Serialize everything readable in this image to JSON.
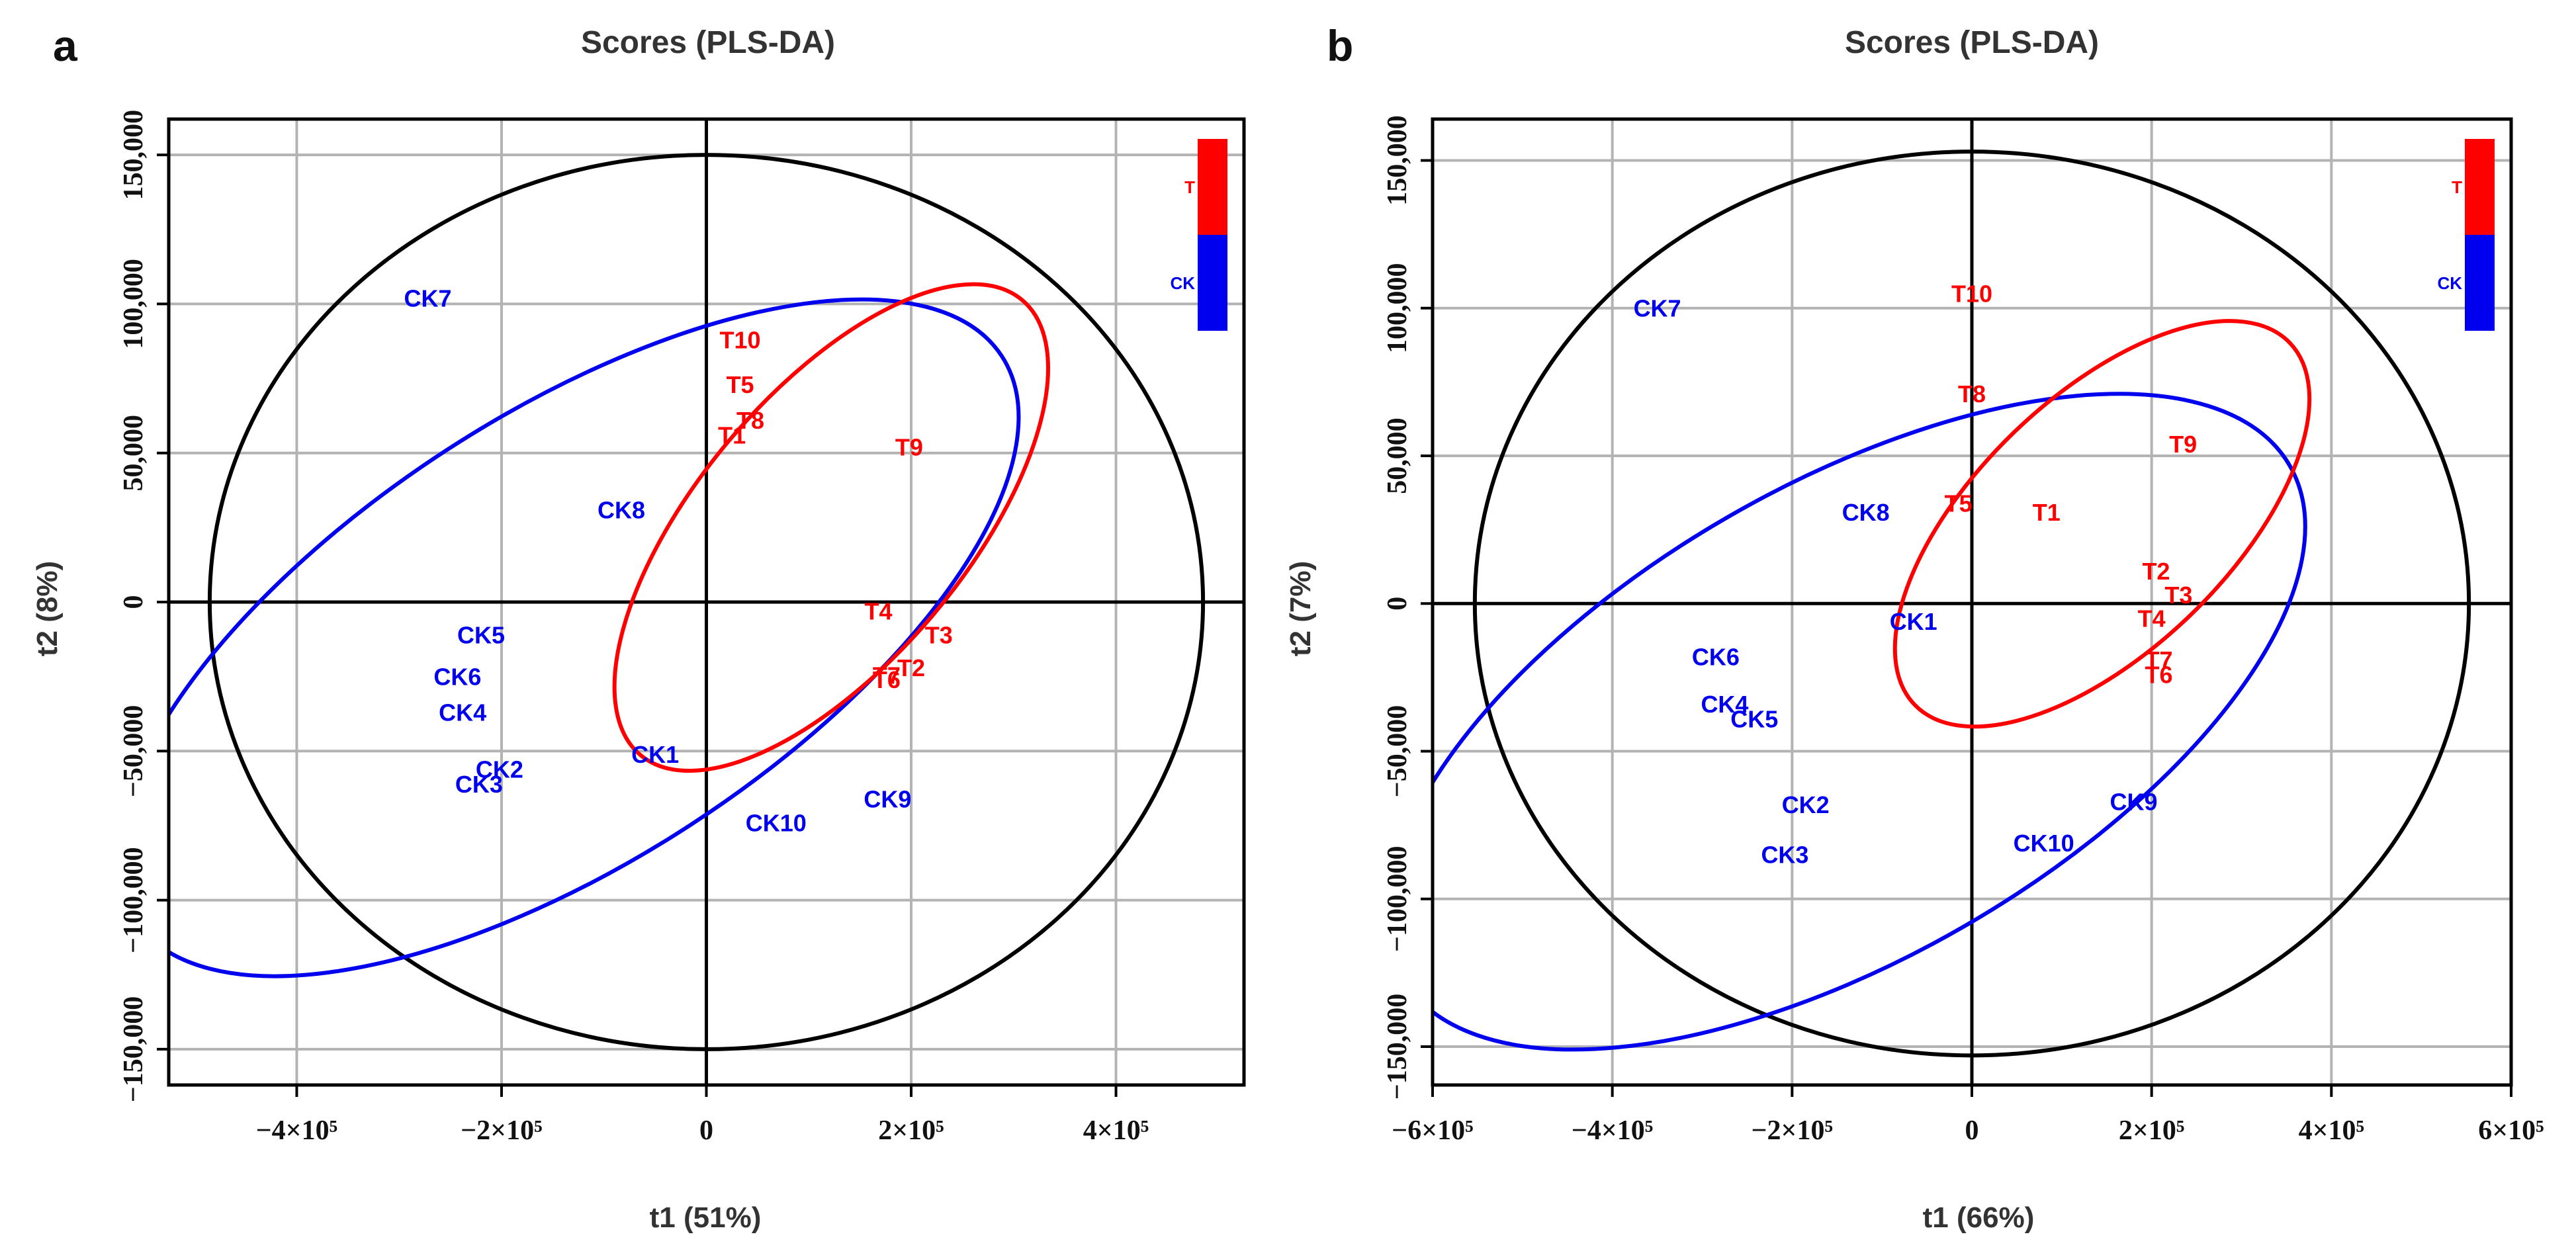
{
  "figure": {
    "panels": [
      "a",
      "b"
    ]
  },
  "colors": {
    "T": "#ff0000",
    "CK": "#0000ee",
    "frame": "#000000",
    "grid": "#b3b3b3",
    "hotelling": "#000000"
  },
  "chart_data": [
    {
      "panel": "a",
      "type": "scatter",
      "title": "Scores (PLS-DA)",
      "xlabel": "t1 (51%)",
      "ylabel": "t2 (8%)",
      "xlim": [
        -525000,
        525000
      ],
      "ylim": [
        -162000,
        162000
      ],
      "xticks": [
        {
          "v": -400000,
          "label": "−4×10⁵"
        },
        {
          "v": -200000,
          "label": "−2×10⁵"
        },
        {
          "v": 0,
          "label": "0"
        },
        {
          "v": 200000,
          "label": "2×10⁵"
        },
        {
          "v": 400000,
          "label": "4×10⁵"
        }
      ],
      "yticks": [
        {
          "v": -150000,
          "label": "−150,000"
        },
        {
          "v": -100000,
          "label": "−100,000"
        },
        {
          "v": -50000,
          "label": "−50,000"
        },
        {
          "v": 0,
          "label": "0"
        },
        {
          "v": 50000,
          "label": "50,000"
        },
        {
          "v": 100000,
          "label": "100,000"
        },
        {
          "v": 150000,
          "label": "150,000"
        }
      ],
      "legend": {
        "position": "top-right",
        "entries": [
          {
            "label": "T",
            "group": "T"
          },
          {
            "label": "CK",
            "group": "CK"
          }
        ]
      },
      "hotelling_ellipse": {
        "cx": 0,
        "cy": 0,
        "rx": 485000,
        "ry": 150000,
        "angle": 0
      },
      "group_ellipses": [
        {
          "group": "CK",
          "cx": -135000,
          "cy": -12000,
          "rx": 505000,
          "ry": 75000,
          "angle": 33
        },
        {
          "group": "T",
          "cx": 122000,
          "cy": 25000,
          "rx": 290000,
          "ry": 45000,
          "angle": 50
        }
      ],
      "series": [
        {
          "name": "T",
          "points": [
            {
              "label": "T10",
              "x": 33000,
              "y": 88000
            },
            {
              "label": "T5",
              "x": 33000,
              "y": 73000
            },
            {
              "label": "T8",
              "x": 43000,
              "y": 61000
            },
            {
              "label": "T1",
              "x": 25000,
              "y": 56000
            },
            {
              "label": "T9",
              "x": 198000,
              "y": 52000
            },
            {
              "label": "T4",
              "x": 168000,
              "y": -3000
            },
            {
              "label": "T3",
              "x": 227000,
              "y": -11000
            },
            {
              "label": "T2",
              "x": 200000,
              "y": -22000
            },
            {
              "label": "T6",
              "x": 176000,
              "y": -26000
            },
            {
              "label": "T7",
              "x": 176000,
              "y": -24500
            }
          ]
        },
        {
          "name": "CK",
          "points": [
            {
              "label": "CK7",
              "x": -272000,
              "y": 102000
            },
            {
              "label": "CK8",
              "x": -83000,
              "y": 31000
            },
            {
              "label": "CK5",
              "x": -220000,
              "y": -11000
            },
            {
              "label": "CK6",
              "x": -243000,
              "y": -25000
            },
            {
              "label": "CK4",
              "x": -238000,
              "y": -37000
            },
            {
              "label": "CK1",
              "x": -50000,
              "y": -51000
            },
            {
              "label": "CK2",
              "x": -202000,
              "y": -56000
            },
            {
              "label": "CK3",
              "x": -222000,
              "y": -61000
            },
            {
              "label": "CK9",
              "x": 177000,
              "y": -66000
            },
            {
              "label": "CK10",
              "x": 68000,
              "y": -74000
            }
          ]
        }
      ]
    },
    {
      "panel": "b",
      "type": "scatter",
      "title": "Scores (PLS-DA)",
      "xlabel": "t1 (66%)",
      "ylabel": "t2 (7%)",
      "xlim": [
        -600000,
        600000
      ],
      "ylim": [
        -163000,
        164000
      ],
      "xticks": [
        {
          "v": -600000,
          "label": "−6×10⁵"
        },
        {
          "v": -400000,
          "label": "−4×10⁵"
        },
        {
          "v": -200000,
          "label": "−2×10⁵"
        },
        {
          "v": 0,
          "label": "0"
        },
        {
          "v": 200000,
          "label": "2×10⁵"
        },
        {
          "v": 400000,
          "label": "4×10⁵"
        },
        {
          "v": 600000,
          "label": "6×10⁵"
        }
      ],
      "yticks": [
        {
          "v": -150000,
          "label": "−150,000"
        },
        {
          "v": -100000,
          "label": "−100,000"
        },
        {
          "v": -50000,
          "label": "−50,000"
        },
        {
          "v": 0,
          "label": "0"
        },
        {
          "v": 50000,
          "label": "50,000"
        },
        {
          "v": 100000,
          "label": "100,000"
        },
        {
          "v": 150000,
          "label": "150,000"
        }
      ],
      "legend": {
        "position": "top-right",
        "entries": [
          {
            "label": "T",
            "group": "T"
          },
          {
            "label": "CK",
            "group": "CK"
          }
        ]
      },
      "hotelling_ellipse": {
        "cx": 0,
        "cy": 0,
        "rx": 553000,
        "ry": 153000,
        "angle": 0
      },
      "group_ellipses": [
        {
          "group": "CK",
          "cx": -140000,
          "cy": -40000,
          "rx": 570000,
          "ry": 80000,
          "angle": 30
        },
        {
          "group": "T",
          "cx": 145000,
          "cy": 27000,
          "rx": 290000,
          "ry": 43000,
          "angle": 44
        }
      ],
      "series": [
        {
          "name": "T",
          "points": [
            {
              "label": "T10",
              "x": 0,
              "y": 105000
            },
            {
              "label": "T8",
              "x": 0,
              "y": 71000
            },
            {
              "label": "T9",
              "x": 235000,
              "y": 54000
            },
            {
              "label": "T5",
              "x": -15000,
              "y": 34000
            },
            {
              "label": "T1",
              "x": 83000,
              "y": 31000
            },
            {
              "label": "T2",
              "x": 205000,
              "y": 11000
            },
            {
              "label": "T3",
              "x": 230000,
              "y": 3000
            },
            {
              "label": "T4",
              "x": 200000,
              "y": -5000
            },
            {
              "label": "T7",
              "x": 208000,
              "y": -19000
            },
            {
              "label": "T6",
              "x": 208000,
              "y": -24000
            }
          ]
        },
        {
          "name": "CK",
          "points": [
            {
              "label": "CK7",
              "x": -350000,
              "y": 100000
            },
            {
              "label": "CK8",
              "x": -118000,
              "y": 31000
            },
            {
              "label": "CK1",
              "x": -65000,
              "y": -6000
            },
            {
              "label": "CK6",
              "x": -285000,
              "y": -18000
            },
            {
              "label": "CK4",
              "x": -275000,
              "y": -34000
            },
            {
              "label": "CK5",
              "x": -242000,
              "y": -39000
            },
            {
              "label": "CK2",
              "x": -185000,
              "y": -68000
            },
            {
              "label": "CK3",
              "x": -208000,
              "y": -85000
            },
            {
              "label": "CK9",
              "x": 180000,
              "y": -67000
            },
            {
              "label": "CK10",
              "x": 80000,
              "y": -81000
            }
          ]
        }
      ]
    }
  ]
}
